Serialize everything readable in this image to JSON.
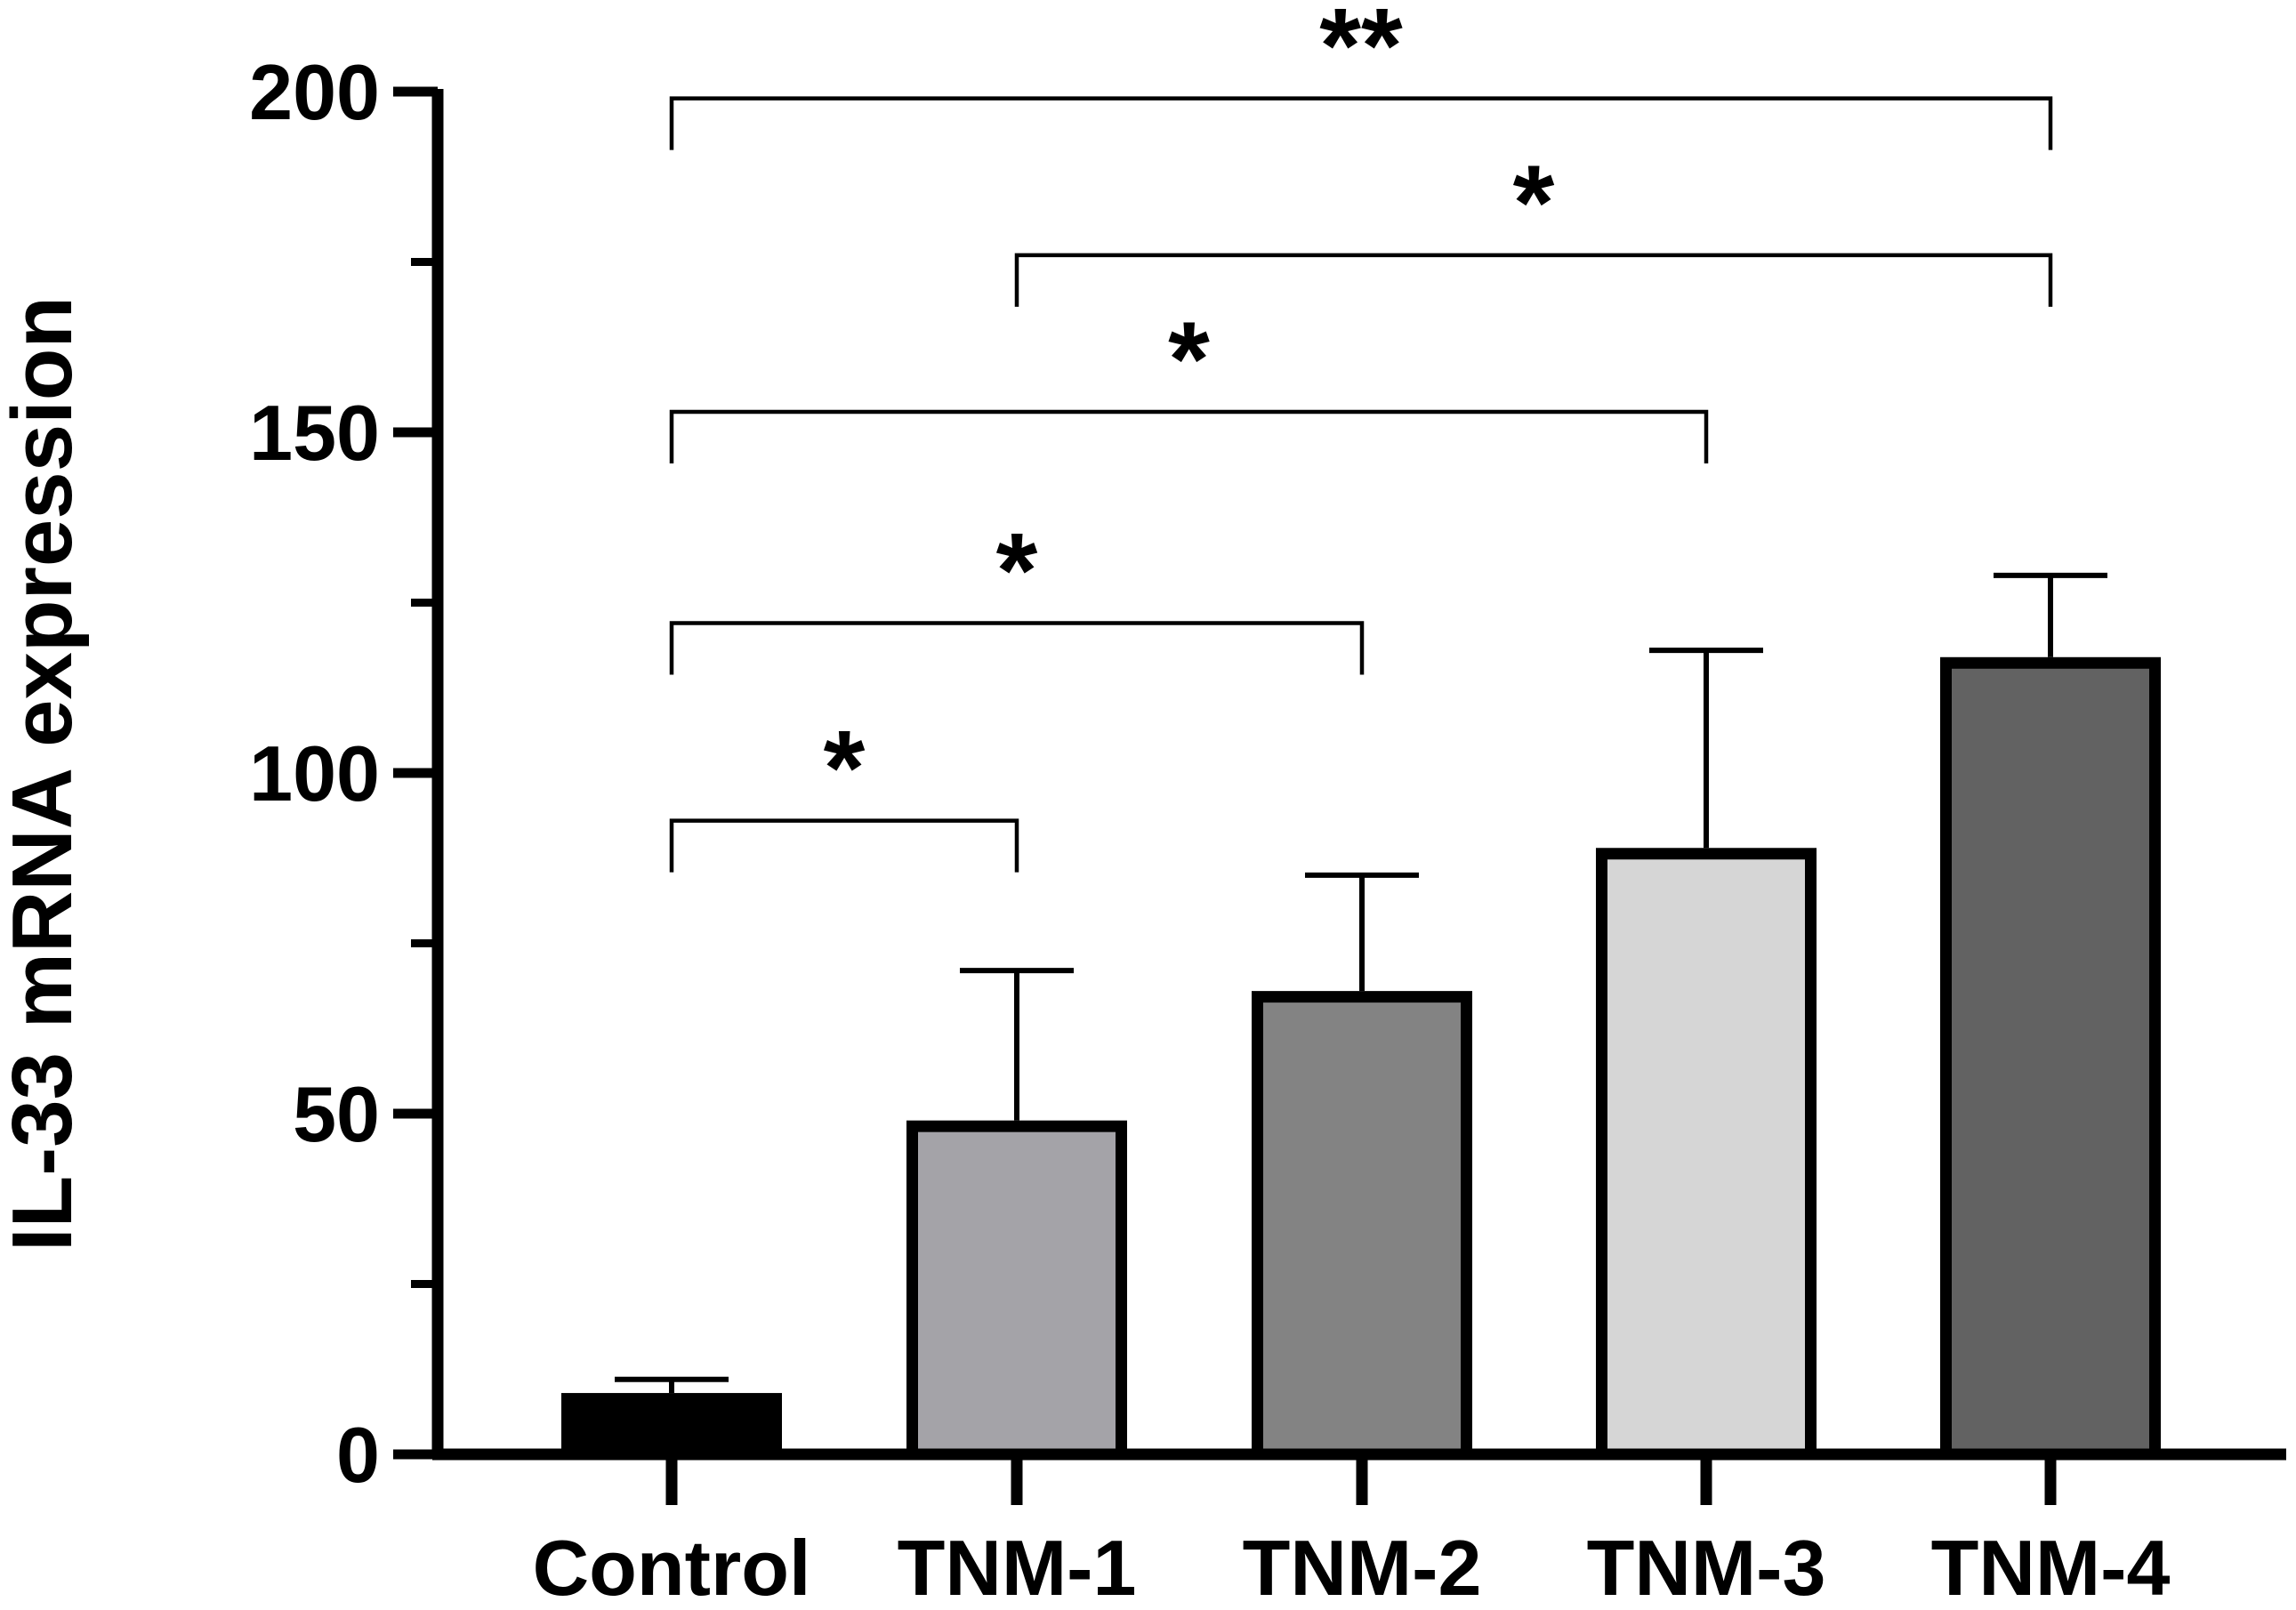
{
  "chart_data": {
    "type": "bar",
    "title": "",
    "xlabel": "",
    "ylabel": "IL-33 mRNA expression",
    "ylim": [
      0,
      200
    ],
    "y_major_ticks": [
      0,
      50,
      100,
      150,
      200
    ],
    "y_minor_ticks": [
      25,
      75,
      125,
      175
    ],
    "categories": [
      "Control",
      "TNM-1",
      "TNM-2",
      "TNM-3",
      "TNM-4"
    ],
    "values": [
      9,
      49,
      68,
      89,
      117
    ],
    "error_upper": [
      11,
      71,
      85,
      118,
      129
    ],
    "colors": [
      "#000000",
      "#a4a3a8",
      "#838383",
      "#d6d6d6",
      "#626262"
    ],
    "significance": [
      {
        "from": "Control",
        "to": "TNM-1",
        "level": 93,
        "label": "*"
      },
      {
        "from": "Control",
        "to": "TNM-2",
        "level": 122,
        "label": "*"
      },
      {
        "from": "Control",
        "to": "TNM-3",
        "level": 153,
        "label": "*"
      },
      {
        "from": "TNM-1",
        "to": "TNM-4",
        "level": 176,
        "label": "*"
      },
      {
        "from": "Control",
        "to": "TNM-4",
        "level": 199,
        "label": "**"
      }
    ]
  }
}
